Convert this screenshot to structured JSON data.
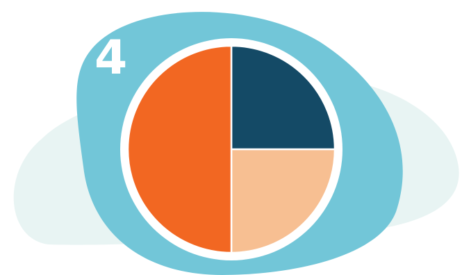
{
  "step_number": "4",
  "colors": {
    "background_shape": "#e8f4f3",
    "blob": "#72c6d8",
    "ring": "#ffffff",
    "number": "#ffffff"
  },
  "chart_data": {
    "type": "pie",
    "start_angle": "12 o'clock",
    "direction": "clockwise",
    "slices": [
      {
        "value": 25,
        "color": "#144a66"
      },
      {
        "value": 25,
        "color": "#f7bf92"
      },
      {
        "value": 50,
        "color": "#f26722"
      }
    ],
    "separator_color": "#ffffff"
  }
}
